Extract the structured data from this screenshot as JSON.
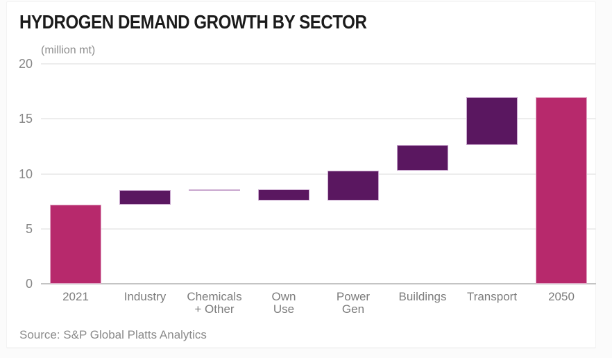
{
  "chart_data": {
    "type": "bar",
    "subtype": "waterfall",
    "title": "HYDROGEN DEMAND GROWTH BY SECTOR",
    "unit_label": "(million mt)",
    "source": "Source: S&P Global Platts Analytics",
    "ylim": [
      0,
      20
    ],
    "y_ticks": [
      0,
      5,
      10,
      15,
      20
    ],
    "grid": "horizontal",
    "legend": "none",
    "colors": {
      "total_bar": "#b7296c",
      "total_bar_edge": "#e2abc8",
      "delta_bar": "#5a1760",
      "delta_bar_edge": "#c9a6ce",
      "gridline": "#ededed",
      "zero_line": "#c4c4c4",
      "title_text": "#1b1b1b",
      "axis_text": "#7c7c7c"
    },
    "categories": [
      "2021",
      "Industry",
      "Chemicals + Other",
      "Own Use",
      "Power Gen",
      "Buildings",
      "Transport",
      "2050"
    ],
    "segments": [
      {
        "label": "2021",
        "label_lines": [
          "2021"
        ],
        "role": "total",
        "start": 0,
        "end": 7.2,
        "value": 7.2
      },
      {
        "label": "Industry",
        "label_lines": [
          "Industry"
        ],
        "role": "increase",
        "start": 7.2,
        "end": 8.5,
        "value": 1.3
      },
      {
        "label": "Chemicals + Other",
        "label_lines": [
          "Chemicals",
          "+ Other"
        ],
        "role": "increase",
        "start": 8.5,
        "end": 8.6,
        "value": 0.1
      },
      {
        "label": "Own Use",
        "label_lines": [
          "Own",
          "Use"
        ],
        "role": "decrease",
        "start": 8.6,
        "end": 7.6,
        "value": -1.0
      },
      {
        "label": "Power Gen",
        "label_lines": [
          "Power",
          "Gen"
        ],
        "role": "increase",
        "start": 7.6,
        "end": 10.3,
        "value": 2.7
      },
      {
        "label": "Buildings",
        "label_lines": [
          "Buildings"
        ],
        "role": "increase",
        "start": 10.3,
        "end": 12.6,
        "value": 2.3
      },
      {
        "label": "Transport",
        "label_lines": [
          "Transport"
        ],
        "role": "increase",
        "start": 12.6,
        "end": 17.0,
        "value": 4.4
      },
      {
        "label": "2050",
        "label_lines": [
          "2050"
        ],
        "role": "total",
        "start": 0,
        "end": 17.0,
        "value": 17.0
      }
    ]
  }
}
